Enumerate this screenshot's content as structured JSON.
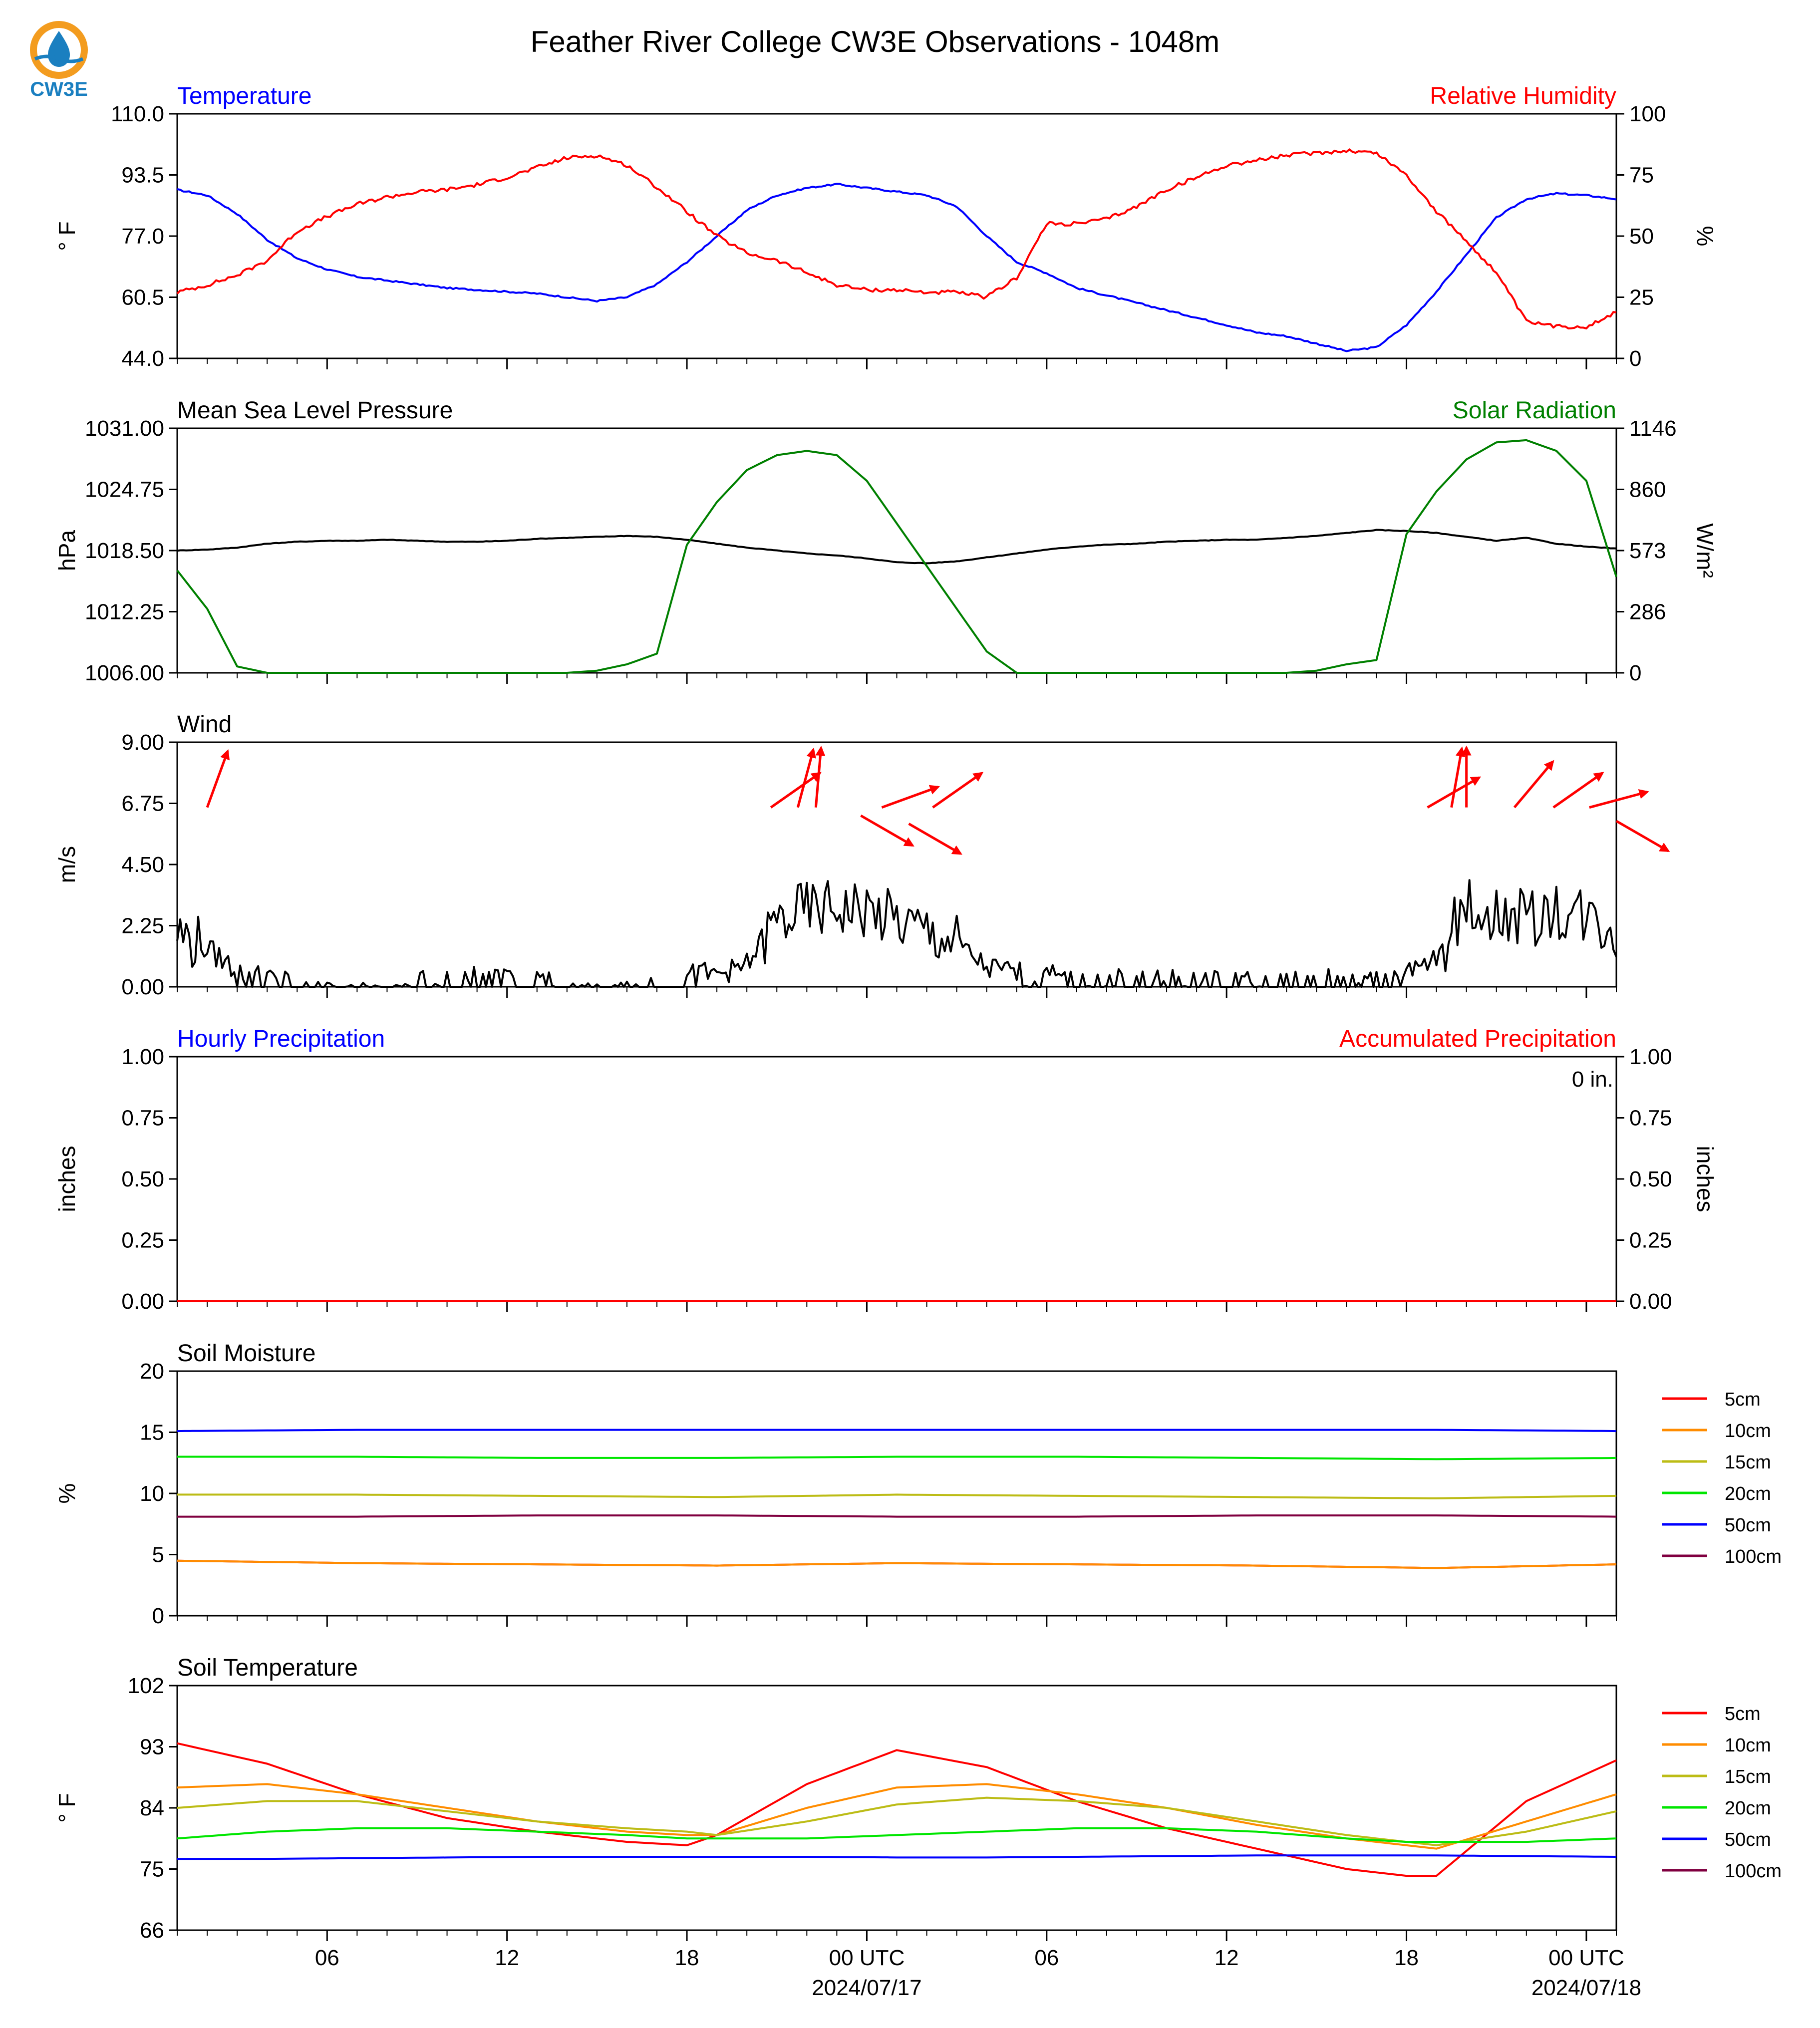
{
  "title": "Feather River College CW3E Observations - 1048m",
  "logo": {
    "text": "CW3E",
    "icon": "water-drop-logo-icon",
    "color": "#1a7fc0"
  },
  "colors": {
    "temperature": "#0000ff",
    "humidity": "#ff0000",
    "pressure": "#000000",
    "solar": "#008000",
    "wind_speed": "#000000",
    "wind_arrow": "#ff0000",
    "hourly_precip": "#0000ff",
    "accum_precip": "#ff0000",
    "depth_5cm": "#ff0000",
    "depth_10cm": "#ff8c00",
    "depth_15cm": "#bcbc16",
    "depth_20cm": "#00e600",
    "depth_50cm": "#0000ff",
    "depth_100cm": "#800040"
  },
  "chart_data": [
    {
      "id": "temp_rh",
      "type": "line",
      "title_left": "Temperature",
      "title_right": "Relative Humidity",
      "ylabel_left": "° F",
      "ylabel_right": "%",
      "ylim_left": [
        44.0,
        110.0
      ],
      "ylim_right": [
        0,
        100
      ],
      "yticks_left": [
        "44.0",
        "60.5",
        "77.0",
        "93.5",
        "110.0"
      ],
      "yticks_right": [
        "0",
        "25",
        "50",
        "75",
        "100"
      ],
      "x_hours": [
        0,
        1,
        2,
        3,
        4,
        5,
        6,
        7,
        8,
        9,
        10,
        11,
        12,
        13,
        14,
        15,
        16,
        17,
        18,
        19,
        20,
        21,
        22,
        23,
        24,
        25,
        26,
        27,
        28,
        29,
        30,
        31,
        32,
        33,
        34,
        35,
        36,
        37,
        38,
        39,
        40,
        41,
        42,
        43,
        44,
        45,
        46,
        47,
        48
      ],
      "series": [
        {
          "name": "Temperature",
          "axis": "left",
          "values": [
            89.5,
            88,
            83,
            76,
            71,
            68,
            66,
            65,
            64,
            63,
            62.5,
            62,
            61.5,
            60.5,
            59.5,
            60.5,
            64,
            70,
            77,
            84,
            88,
            90,
            91,
            90,
            89,
            88,
            85,
            77,
            70,
            67,
            63,
            61,
            59,
            57,
            55,
            53,
            51,
            50,
            48,
            46,
            47,
            53,
            62,
            72,
            82,
            87,
            88.5,
            88,
            87
          ]
        },
        {
          "name": "Relative Humidity",
          "axis": "right",
          "values": [
            27,
            30,
            34,
            40,
            52,
            58,
            63,
            66,
            68,
            69,
            71,
            74,
            78,
            82,
            83,
            79,
            70,
            60,
            50,
            43,
            40,
            35,
            30,
            28,
            28,
            27,
            27,
            25,
            33,
            55,
            55,
            57,
            62,
            69,
            74,
            79,
            81,
            83,
            84,
            85,
            84,
            75,
            60,
            48,
            35,
            15,
            13,
            13,
            19
          ]
        }
      ]
    },
    {
      "id": "pressure_solar",
      "type": "line",
      "title_left": "Mean Sea Level Pressure",
      "title_right": "Solar Radiation",
      "ylabel_left": "hPa",
      "ylabel_right": "W/m²",
      "ylim_left": [
        1006.0,
        1031.0
      ],
      "ylim_right": [
        0,
        1146
      ],
      "yticks_left": [
        "1006.00",
        "1012.25",
        "1018.50",
        "1024.75",
        "1031.00"
      ],
      "yticks_right": [
        "0",
        "286",
        "573",
        "860",
        "1146"
      ],
      "x_hours": [
        0,
        1,
        2,
        3,
        4,
        5,
        6,
        7,
        8,
        9,
        10,
        11,
        12,
        13,
        14,
        15,
        16,
        17,
        18,
        19,
        20,
        21,
        22,
        23,
        24,
        25,
        26,
        27,
        28,
        29,
        30,
        31,
        32,
        33,
        34,
        35,
        36,
        37,
        38,
        39,
        40,
        41,
        42,
        43,
        44,
        45,
        46,
        47,
        48
      ],
      "series": [
        {
          "name": "Mean Sea Level Pressure",
          "axis": "left",
          "values": [
            1018.5,
            1018.6,
            1018.8,
            1019.2,
            1019.4,
            1019.5,
            1019.5,
            1019.6,
            1019.5,
            1019.4,
            1019.4,
            1019.5,
            1019.7,
            1019.8,
            1019.9,
            1020.0,
            1019.9,
            1019.6,
            1019.2,
            1018.8,
            1018.5,
            1018.2,
            1018.0,
            1017.7,
            1017.3,
            1017.2,
            1017.4,
            1017.8,
            1018.2,
            1018.6,
            1018.9,
            1019.1,
            1019.2,
            1019.4,
            1019.5,
            1019.6,
            1019.6,
            1019.8,
            1020.0,
            1020.3,
            1020.6,
            1020.5,
            1020.3,
            1019.9,
            1019.5,
            1019.8,
            1019.2,
            1018.9,
            1018.7
          ]
        },
        {
          "name": "Solar Radiation",
          "axis": "right",
          "values": [
            480,
            300,
            30,
            0,
            0,
            0,
            0,
            0,
            0,
            0,
            0,
            0,
            0,
            0,
            10,
            40,
            90,
            600,
            800,
            950,
            1020,
            1040,
            1020,
            900,
            700,
            500,
            300,
            100,
            0,
            0,
            0,
            0,
            0,
            0,
            0,
            0,
            0,
            0,
            10,
            40,
            60,
            650,
            850,
            1000,
            1080,
            1090,
            1040,
            900,
            450
          ]
        }
      ]
    },
    {
      "id": "wind",
      "type": "line",
      "title_left": "Wind",
      "ylabel_left": "m/s",
      "ylim_left": [
        0.0,
        9.0
      ],
      "yticks_left": [
        "0.00",
        "2.25",
        "4.50",
        "6.75",
        "9.00"
      ],
      "x_hours": [
        0,
        1,
        2,
        3,
        4,
        5,
        6,
        7,
        8,
        9,
        10,
        11,
        12,
        13,
        14,
        15,
        16,
        17,
        18,
        19,
        20,
        21,
        22,
        23,
        24,
        25,
        26,
        27,
        28,
        29,
        30,
        31,
        32,
        33,
        34,
        35,
        36,
        37,
        38,
        39,
        40,
        41,
        42,
        43,
        44,
        45,
        46,
        47,
        48
      ],
      "series": [
        {
          "name": "Wind Speed",
          "axis": "left",
          "values": [
            2.0,
            1.4,
            0.6,
            0.3,
            0.1,
            0.1,
            0.1,
            0.0,
            0.2,
            0.3,
            0.3,
            0.2,
            0.2,
            0.1,
            0.1,
            0.1,
            0.2,
            0.4,
            0.5,
            0.8,
            2.4,
            2.8,
            2.9,
            2.8,
            2.4,
            2.0,
            1.6,
            0.7,
            0.5,
            0.4,
            0.2,
            0.2,
            0.2,
            0.2,
            0.2,
            0.2,
            0.2,
            0.2,
            0.3,
            0.3,
            0.3,
            0.4,
            1.0,
            3.0,
            2.6,
            2.5,
            2.8,
            2.6,
            2.0
          ]
        }
      ],
      "wind_arrows": [
        {
          "hour": 1.0,
          "speed": 6.6,
          "dir_deg": 200
        },
        {
          "hour": 19.8,
          "speed": 6.6,
          "dir_deg": 235
        },
        {
          "hour": 20.7,
          "speed": 6.6,
          "dir_deg": 195
        },
        {
          "hour": 21.3,
          "speed": 6.6,
          "dir_deg": 185
        },
        {
          "hour": 22.8,
          "speed": 6.3,
          "dir_deg": 300
        },
        {
          "hour": 23.5,
          "speed": 6.6,
          "dir_deg": 250
        },
        {
          "hour": 24.4,
          "speed": 6.0,
          "dir_deg": 300
        },
        {
          "hour": 25.2,
          "speed": 6.6,
          "dir_deg": 235
        },
        {
          "hour": 41.7,
          "speed": 6.6,
          "dir_deg": 240
        },
        {
          "hour": 42.5,
          "speed": 6.6,
          "dir_deg": 190
        },
        {
          "hour": 43.0,
          "speed": 6.6,
          "dir_deg": 180
        },
        {
          "hour": 44.6,
          "speed": 6.6,
          "dir_deg": 220
        },
        {
          "hour": 45.9,
          "speed": 6.6,
          "dir_deg": 235
        },
        {
          "hour": 47.1,
          "speed": 6.6,
          "dir_deg": 255
        },
        {
          "hour": 48.0,
          "speed": 6.1,
          "dir_deg": 300
        }
      ]
    },
    {
      "id": "precip",
      "type": "line",
      "title_left": "Hourly Precipitation",
      "title_right": "Accumulated Precipitation",
      "ylabel_left": "inches",
      "ylabel_right": "inches",
      "ylim_left": [
        0.0,
        1.0
      ],
      "ylim_right": [
        0.0,
        1.0
      ],
      "yticks_left": [
        "0.00",
        "0.25",
        "0.50",
        "0.75",
        "1.00"
      ],
      "yticks_right": [
        "0.00",
        "0.25",
        "0.50",
        "0.75",
        "1.00"
      ],
      "annotation": "0 in.",
      "x_hours": [
        0,
        48
      ],
      "series": [
        {
          "name": "Hourly Precipitation",
          "axis": "left",
          "values": [
            0,
            0
          ]
        },
        {
          "name": "Accumulated Precipitation",
          "axis": "right",
          "values": [
            0,
            0
          ]
        }
      ]
    },
    {
      "id": "soil_moisture",
      "type": "line",
      "title_left": "Soil Moisture",
      "ylabel_left": "%",
      "ylim_left": [
        0,
        20
      ],
      "yticks_left": [
        "0",
        "5",
        "10",
        "15",
        "20"
      ],
      "legend": [
        "5cm",
        "10cm",
        "15cm",
        "20cm",
        "50cm",
        "100cm"
      ],
      "x_hours": [
        0,
        6,
        12,
        18,
        24,
        30,
        36,
        42,
        48
      ],
      "series": [
        {
          "name": "5cm",
          "axis": "left",
          "values": [
            4.5,
            4.3,
            4.2,
            4.1,
            4.3,
            4.2,
            4.1,
            3.9,
            4.2
          ]
        },
        {
          "name": "10cm",
          "axis": "left",
          "values": [
            4.5,
            4.3,
            4.2,
            4.1,
            4.3,
            4.2,
            4.1,
            3.9,
            4.2
          ]
        },
        {
          "name": "15cm",
          "axis": "left",
          "values": [
            9.9,
            9.9,
            9.8,
            9.7,
            9.9,
            9.8,
            9.7,
            9.6,
            9.8
          ]
        },
        {
          "name": "20cm",
          "axis": "left",
          "values": [
            13.0,
            13.0,
            12.9,
            12.9,
            13.0,
            13.0,
            12.9,
            12.8,
            12.9
          ]
        },
        {
          "name": "50cm",
          "axis": "left",
          "values": [
            15.1,
            15.2,
            15.2,
            15.2,
            15.2,
            15.2,
            15.2,
            15.2,
            15.1
          ]
        },
        {
          "name": "100cm",
          "axis": "left",
          "values": [
            8.1,
            8.1,
            8.2,
            8.2,
            8.1,
            8.1,
            8.2,
            8.2,
            8.1
          ]
        }
      ]
    },
    {
      "id": "soil_temperature",
      "type": "line",
      "title_left": "Soil Temperature",
      "ylabel_left": "° F",
      "ylim_left": [
        66,
        102
      ],
      "yticks_left": [
        "66",
        "75",
        "84",
        "93",
        "102"
      ],
      "legend": [
        "5cm",
        "10cm",
        "15cm",
        "20cm",
        "50cm",
        "100cm"
      ],
      "x_hours": [
        0,
        3,
        6,
        9,
        12,
        15,
        17,
        18,
        21,
        24,
        27,
        30,
        33,
        36,
        39,
        41,
        42,
        45,
        48
      ],
      "series": [
        {
          "name": "5cm",
          "axis": "left",
          "values": [
            93.5,
            90.5,
            86,
            82.5,
            80.5,
            79,
            78.5,
            80,
            87.5,
            92.5,
            90,
            85,
            81,
            78,
            75,
            74,
            74,
            85,
            91
          ]
        },
        {
          "name": "10cm",
          "axis": "left",
          "values": [
            87,
            87.5,
            86,
            84,
            82,
            80.5,
            80,
            80,
            84,
            87,
            87.5,
            86,
            84,
            81.5,
            79.5,
            78.5,
            78,
            82,
            86
          ]
        },
        {
          "name": "15cm",
          "axis": "left",
          "values": [
            84,
            85,
            85,
            83.5,
            82,
            81,
            80.5,
            80,
            82,
            84.5,
            85.5,
            85,
            84,
            82,
            80,
            79,
            78.5,
            80.5,
            83.5
          ]
        },
        {
          "name": "20cm",
          "axis": "left",
          "values": [
            79.5,
            80.5,
            81,
            81,
            80.5,
            80,
            79.5,
            79.5,
            79.5,
            80,
            80.5,
            81,
            81,
            80.5,
            79.5,
            79,
            79,
            79,
            79.5
          ]
        },
        {
          "name": "50cm",
          "axis": "left",
          "values": [
            76.5,
            76.5,
            76.6,
            76.7,
            76.8,
            76.8,
            76.8,
            76.8,
            76.8,
            76.7,
            76.7,
            76.8,
            76.9,
            77,
            77,
            77,
            77,
            76.9,
            76.8
          ]
        }
      ]
    }
  ],
  "x_axis": {
    "hours": [
      5,
      11,
      17,
      23,
      29,
      35,
      41,
      47
    ],
    "labels": [
      "06",
      "12",
      "18",
      "00 UTC",
      "06",
      "12",
      "18",
      "00 UTC"
    ],
    "date_labels": [
      {
        "hour": 23,
        "text": "2024/07/17"
      },
      {
        "hour": 47,
        "text": "2024/07/18"
      }
    ]
  }
}
